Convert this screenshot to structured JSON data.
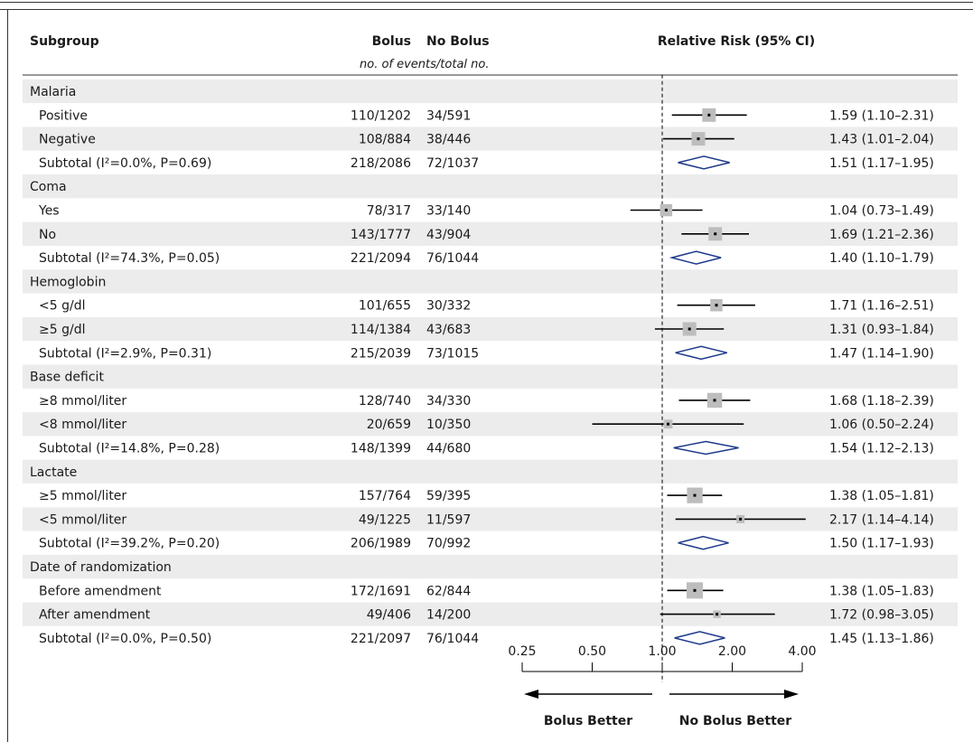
{
  "headers": {
    "subgroup": "Subgroup",
    "bolus": "Bolus",
    "no_bolus": "No Bolus",
    "rr": "Relative Risk (95% CI)",
    "events_note": "no. of events/total no."
  },
  "direction_labels": {
    "left": "Bolus Better",
    "right": "No Bolus Better"
  },
  "colors": {
    "band": "#ececec",
    "box": "#bdbdbd",
    "diamond": "#1f3a8a",
    "line": "#000000"
  },
  "chart_data": {
    "type": "forest",
    "x_scale": "log",
    "xlim": [
      0.25,
      4.0
    ],
    "ticks": [
      {
        "value": 0.25,
        "label": "0.25"
      },
      {
        "value": 0.5,
        "label": "0.50"
      },
      {
        "value": 1.0,
        "label": "1.00"
      },
      {
        "value": 2.0,
        "label": "2.00"
      },
      {
        "value": 4.0,
        "label": "4.00"
      }
    ],
    "reference_line": 1.0,
    "rows": [
      {
        "kind": "group",
        "label": "Malaria"
      },
      {
        "kind": "item",
        "label": "Positive",
        "bolus": "110/1202",
        "no_bolus": "34/591",
        "rr": 1.59,
        "lo": 1.1,
        "hi": 2.31,
        "ci_text": "1.59 (1.10–2.31)",
        "size": 1.0
      },
      {
        "kind": "item",
        "label": "Negative",
        "bolus": "108/884",
        "no_bolus": "38/446",
        "rr": 1.43,
        "lo": 1.01,
        "hi": 2.04,
        "ci_text": "1.43 (1.01–2.04)",
        "size": 1.0
      },
      {
        "kind": "subtotal",
        "label": "Subtotal (I²=0.0%, P=0.69)",
        "bolus": "218/2086",
        "no_bolus": "72/1037",
        "rr": 1.51,
        "lo": 1.17,
        "hi": 1.95,
        "ci_text": "1.51 (1.17–1.95)"
      },
      {
        "kind": "group",
        "label": "Coma"
      },
      {
        "kind": "item",
        "label": "Yes",
        "bolus": "78/317",
        "no_bolus": "33/140",
        "rr": 1.04,
        "lo": 0.73,
        "hi": 1.49,
        "ci_text": "1.04 (0.73–1.49)",
        "size": 0.9
      },
      {
        "kind": "item",
        "label": "No",
        "bolus": "143/1777",
        "no_bolus": "43/904",
        "rr": 1.69,
        "lo": 1.21,
        "hi": 2.36,
        "ci_text": "1.69 (1.21–2.36)",
        "size": 1.0
      },
      {
        "kind": "subtotal",
        "label": "Subtotal (I²=74.3%, P=0.05)",
        "bolus": "221/2094",
        "no_bolus": "76/1044",
        "rr": 1.4,
        "lo": 1.1,
        "hi": 1.79,
        "ci_text": "1.40 (1.10–1.79)"
      },
      {
        "kind": "group",
        "label": "Hemoglobin"
      },
      {
        "kind": "item",
        "label": "<5 g/dl",
        "bolus": "101/655",
        "no_bolus": "30/332",
        "rr": 1.71,
        "lo": 1.16,
        "hi": 2.51,
        "ci_text": "1.71 (1.16–2.51)",
        "size": 0.9
      },
      {
        "kind": "item",
        "label": "≥5 g/dl",
        "bolus": "114/1384",
        "no_bolus": "43/683",
        "rr": 1.31,
        "lo": 0.93,
        "hi": 1.84,
        "ci_text": "1.31 (0.93–1.84)",
        "size": 1.0
      },
      {
        "kind": "subtotal",
        "label": "Subtotal (I²=2.9%, P=0.31)",
        "bolus": "215/2039",
        "no_bolus": "73/1015",
        "rr": 1.47,
        "lo": 1.14,
        "hi": 1.9,
        "ci_text": "1.47 (1.14–1.90)"
      },
      {
        "kind": "group",
        "label": "Base deficit"
      },
      {
        "kind": "item",
        "label": "≥8 mmol/liter",
        "bolus": "128/740",
        "no_bolus": "34/330",
        "rr": 1.68,
        "lo": 1.18,
        "hi": 2.39,
        "ci_text": "1.68 (1.18–2.39)",
        "size": 1.1
      },
      {
        "kind": "item",
        "label": "<8 mmol/liter",
        "bolus": "20/659",
        "no_bolus": "10/350",
        "rr": 1.06,
        "lo": 0.5,
        "hi": 2.24,
        "ci_text": "1.06 (0.50–2.24)",
        "size": 0.65
      },
      {
        "kind": "subtotal",
        "label": "Subtotal (I²=14.8%, P=0.28)",
        "bolus": "148/1399",
        "no_bolus": "44/680",
        "rr": 1.54,
        "lo": 1.12,
        "hi": 2.13,
        "ci_text": "1.54 (1.12–2.13)"
      },
      {
        "kind": "group",
        "label": "Lactate"
      },
      {
        "kind": "item",
        "label": "≥5 mmol/liter",
        "bolus": "157/764",
        "no_bolus": "59/395",
        "rr": 1.38,
        "lo": 1.05,
        "hi": 1.81,
        "ci_text": "1.38 (1.05–1.81)",
        "size": 1.15
      },
      {
        "kind": "item",
        "label": "<5 mmol/liter",
        "bolus": "49/1225",
        "no_bolus": "11/597",
        "rr": 2.17,
        "lo": 1.14,
        "hi": 4.14,
        "ci_text": "2.17 (1.14–4.14)",
        "size": 0.6
      },
      {
        "kind": "subtotal",
        "label": "Subtotal (I²=39.2%, P=0.20)",
        "bolus": "206/1989",
        "no_bolus": "70/992",
        "rr": 1.5,
        "lo": 1.17,
        "hi": 1.93,
        "ci_text": "1.50 (1.17–1.93)"
      },
      {
        "kind": "group",
        "label": "Date of randomization"
      },
      {
        "kind": "item",
        "label": "Before amendment",
        "bolus": "172/1691",
        "no_bolus": "62/844",
        "rr": 1.38,
        "lo": 1.05,
        "hi": 1.83,
        "ci_text": "1.38 (1.05–1.83)",
        "size": 1.2
      },
      {
        "kind": "item",
        "label": "After amendment",
        "bolus": "49/406",
        "no_bolus": "14/200",
        "rr": 1.72,
        "lo": 0.98,
        "hi": 3.05,
        "ci_text": "1.72 (0.98–3.05)",
        "size": 0.55
      },
      {
        "kind": "subtotal",
        "label": "Subtotal (I²=0.0%, P=0.50)",
        "bolus": "221/2097",
        "no_bolus": "76/1044",
        "rr": 1.45,
        "lo": 1.13,
        "hi": 1.86,
        "ci_text": "1.45 (1.13–1.86)"
      }
    ]
  }
}
